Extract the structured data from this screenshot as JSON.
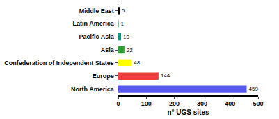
{
  "chart_data": {
    "type": "bar",
    "orientation": "horizontal",
    "categories": [
      "Middle East",
      "Latin America",
      "Pacific Asia",
      "Asia",
      "Confederation of Independent States",
      "Europe",
      "North America"
    ],
    "values": [
      5,
      1,
      10,
      22,
      48,
      144,
      459
    ],
    "colors": [
      "#000000",
      "#006d2c",
      "#00a087",
      "#2ca02c",
      "#ffff00",
      "#f03c3c",
      "#5a5af0"
    ],
    "x_label": "n° UGS sites",
    "xlim": [
      0,
      500
    ],
    "xticks": [
      0,
      100,
      200,
      300,
      400,
      500
    ],
    "grid": false,
    "data_labels": true
  }
}
